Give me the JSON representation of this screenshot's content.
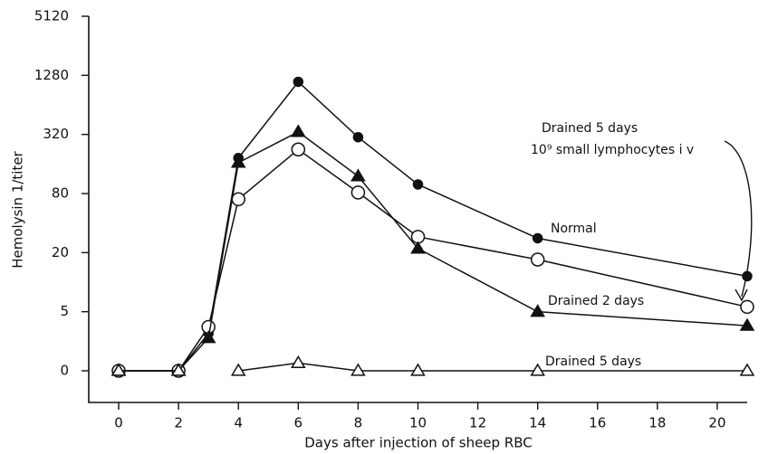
{
  "chart_data": {
    "type": "line",
    "xlabel": "Days after injection of sheep RBC",
    "ylabel": "Hemolysin 1/titer",
    "yscale": "log",
    "xlim": [
      -1,
      21
    ],
    "ylim": [
      0,
      5120
    ],
    "xticks": [
      0,
      2,
      4,
      6,
      8,
      10,
      12,
      14,
      16,
      18,
      20
    ],
    "yticks": [
      0,
      5,
      20,
      80,
      320,
      1280,
      5120
    ],
    "x": [
      0,
      2,
      3,
      4,
      6,
      8,
      10,
      14,
      21
    ],
    "series": [
      {
        "color": "#111111",
        "marker": "circle",
        "filled": true,
        "values": [
          0,
          0,
          3,
          184,
          1100,
          300,
          99,
          28,
          11.5
        ]
      },
      {
        "color": "#111111",
        "marker": "circle",
        "filled": false,
        "values": [
          0,
          0,
          3.5,
          70,
          225,
          82,
          29,
          17,
          5.6
        ]
      },
      {
        "color": "#111111",
        "marker": "triangle",
        "filled": true,
        "values": [
          0,
          0,
          2.7,
          165,
          340,
          120,
          22,
          5,
          3.6
        ]
      },
      {
        "color": "#111111",
        "marker": "triangle",
        "filled": false,
        "values": [
          0,
          0,
          null,
          0,
          1.5,
          0,
          0,
          0,
          0
        ]
      }
    ],
    "annotations": [
      "Drained 5 days",
      "10⁹ small lymphocytes i v",
      "Normal",
      "Drained 2 days",
      "Drained 5 days"
    ]
  }
}
